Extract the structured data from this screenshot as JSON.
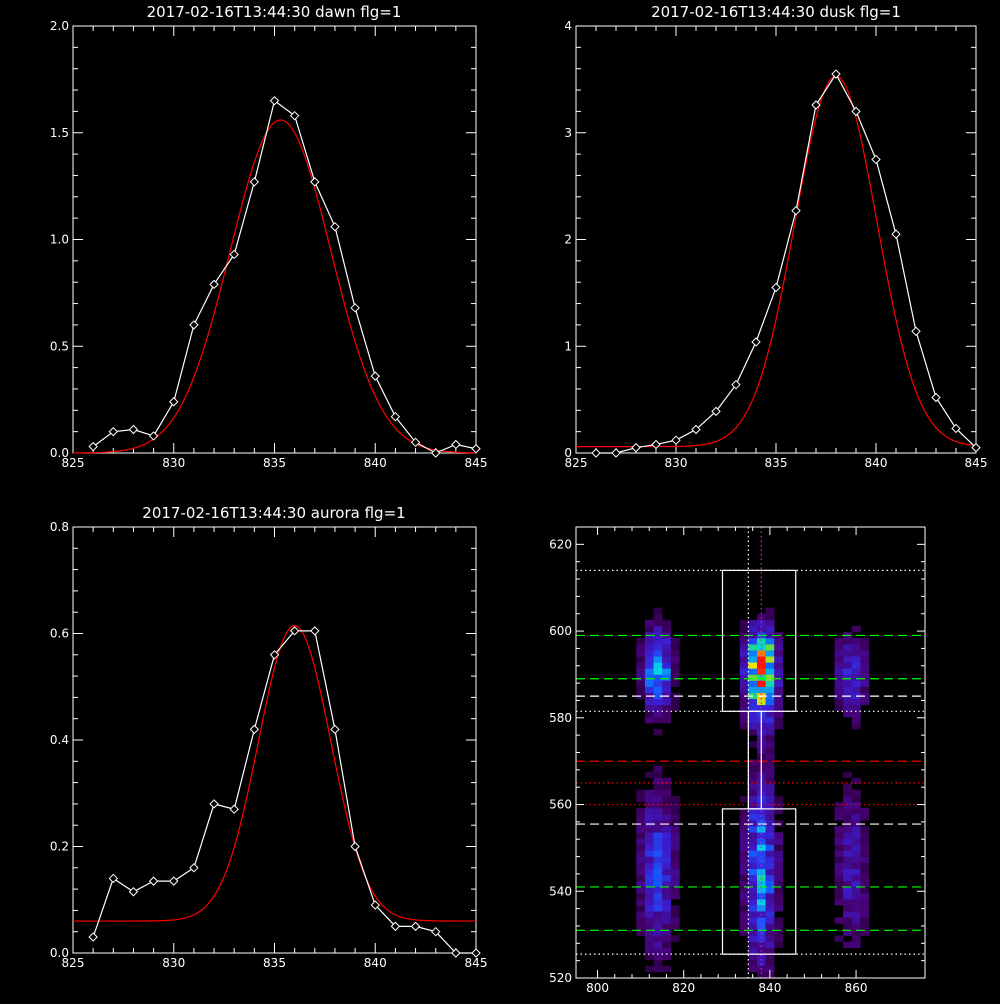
{
  "colors": {
    "background": "#000000",
    "axis": "#ffffff",
    "fit": "#ff0000",
    "data": "#ffffff",
    "green_line": "#00ff00",
    "red_line": "#ff0000",
    "white_dash": "#ffffff",
    "magenta_dot": "#ff00ff"
  },
  "chart_data": [
    {
      "type": "line",
      "title": "2017-02-16T13:44:30 dawn flg=1",
      "xlim": [
        825,
        845
      ],
      "ylim": [
        0,
        2.0
      ],
      "xticks": [
        "825",
        "830",
        "835",
        "840",
        "845"
      ],
      "yticks": [
        "0.0",
        "0.5",
        "1.0",
        "1.5",
        "2.0"
      ],
      "series": [
        {
          "x": [
            826,
            827,
            828,
            829,
            830,
            831,
            832,
            833,
            834,
            835,
            836,
            837,
            838,
            839,
            840,
            841,
            842,
            843,
            844,
            845
          ],
          "values": [
            0.03,
            0.1,
            0.11,
            0.08,
            0.24,
            0.6,
            0.79,
            0.93,
            1.27,
            1.65,
            1.58,
            1.27,
            1.06,
            0.68,
            0.36,
            0.17,
            0.05,
            0.0,
            0.04,
            0.02
          ]
        }
      ],
      "fit": {
        "center": 835.3,
        "amplitude": 1.56,
        "sigma": 2.5,
        "offset": 0.0
      }
    },
    {
      "type": "line",
      "title": "2017-02-16T13:44:30 dusk flg=1",
      "xlim": [
        825,
        845
      ],
      "ylim": [
        0,
        4
      ],
      "xticks": [
        "825",
        "830",
        "835",
        "840",
        "845"
      ],
      "yticks": [
        "0",
        "1",
        "2",
        "3",
        "4"
      ],
      "series": [
        {
          "x": [
            826,
            827,
            828,
            829,
            830,
            831,
            832,
            833,
            834,
            835,
            836,
            837,
            838,
            839,
            840,
            841,
            842,
            843,
            844,
            845
          ],
          "values": [
            0.0,
            0.0,
            0.05,
            0.08,
            0.12,
            0.22,
            0.39,
            0.64,
            1.04,
            1.55,
            2.27,
            3.26,
            3.55,
            3.2,
            2.75,
            2.05,
            1.14,
            0.52,
            0.23,
            0.05
          ]
        }
      ],
      "fit": {
        "center": 838,
        "amplitude": 3.47,
        "sigma": 2.05,
        "offset": 0.06
      }
    },
    {
      "type": "line",
      "title": "2017-02-16T13:44:30 aurora flg=1",
      "xlim": [
        825,
        845
      ],
      "ylim": [
        0,
        0.8
      ],
      "xticks": [
        "825",
        "830",
        "835",
        "840",
        "845"
      ],
      "yticks": [
        "0.0",
        "0.2",
        "0.4",
        "0.6",
        "0.8"
      ],
      "series": [
        {
          "x": [
            826,
            827,
            828,
            829,
            830,
            831,
            832,
            833,
            834,
            835,
            836,
            837,
            838,
            839,
            840,
            841,
            842,
            843,
            844,
            845
          ],
          "values": [
            0.03,
            0.14,
            0.115,
            0.135,
            0.135,
            0.16,
            0.28,
            0.27,
            0.42,
            0.56,
            0.605,
            0.605,
            0.42,
            0.2,
            0.09,
            0.05,
            0.05,
            0.04,
            0.0,
            0.0
          ]
        }
      ],
      "fit": {
        "center": 836,
        "amplitude": 0.555,
        "sigma": 1.8,
        "offset": 0.06
      }
    },
    {
      "type": "heatmap",
      "title": "",
      "xlim": [
        795,
        876
      ],
      "ylim": [
        520,
        624
      ],
      "xticks": [
        "800",
        "820",
        "840",
        "860"
      ],
      "yticks": [
        "520",
        "540",
        "560",
        "580",
        "600",
        "620"
      ],
      "blobs": [
        {
          "x": 838,
          "y": 590,
          "sx": 2.6,
          "sy": 7.0,
          "amp": 1.0
        },
        {
          "x": 838,
          "y": 596,
          "sx": 1.5,
          "sy": 2.0,
          "amp": 0.3
        },
        {
          "x": 814,
          "y": 591,
          "sx": 2.4,
          "sy": 6.5,
          "amp": 0.62
        },
        {
          "x": 838,
          "y": 545,
          "sx": 2.5,
          "sy": 15.0,
          "amp": 0.55
        },
        {
          "x": 814,
          "y": 545,
          "sx": 3.0,
          "sy": 14.0,
          "amp": 0.38
        },
        {
          "x": 859,
          "y": 590,
          "sx": 3.0,
          "sy": 7.0,
          "amp": 0.3
        },
        {
          "x": 859,
          "y": 545,
          "sx": 3.0,
          "sy": 14.0,
          "amp": 0.25
        }
      ],
      "boxes": [
        {
          "x0": 829,
          "x1": 846,
          "y0": 581.5,
          "y1": 614
        },
        {
          "x0": 829,
          "x1": 846,
          "y0": 525.5,
          "y1": 559
        }
      ],
      "connector": {
        "x0": 835,
        "x1": 838,
        "y0": 559,
        "y1": 581.5
      },
      "hlines": [
        {
          "y": 614,
          "style": "dotted",
          "color": "#ffffff"
        },
        {
          "y": 599,
          "style": "dashed",
          "color": "#00ff00"
        },
        {
          "y": 589,
          "style": "dashed",
          "color": "#00ff00"
        },
        {
          "y": 585,
          "style": "dashed",
          "color": "#ffffff"
        },
        {
          "y": 581.5,
          "style": "dotted",
          "color": "#ffffff"
        },
        {
          "y": 570,
          "style": "dashed",
          "color": "#ff0000"
        },
        {
          "y": 565,
          "style": "dotted",
          "color": "#ff0000"
        },
        {
          "y": 560,
          "style": "dotted",
          "color": "#ff0000"
        },
        {
          "y": 555.5,
          "style": "dashed",
          "color": "#ffffff"
        },
        {
          "y": 541,
          "style": "dashed",
          "color": "#00ff00"
        },
        {
          "y": 531,
          "style": "dashed",
          "color": "#00ff00"
        },
        {
          "y": 525.5,
          "style": "dotted",
          "color": "#ffffff"
        }
      ],
      "vlines": [
        {
          "x": 835,
          "style": "dotted",
          "color": "#ffffff"
        },
        {
          "x": 838,
          "style": "dotted",
          "color": "#ff00ff"
        }
      ]
    }
  ]
}
